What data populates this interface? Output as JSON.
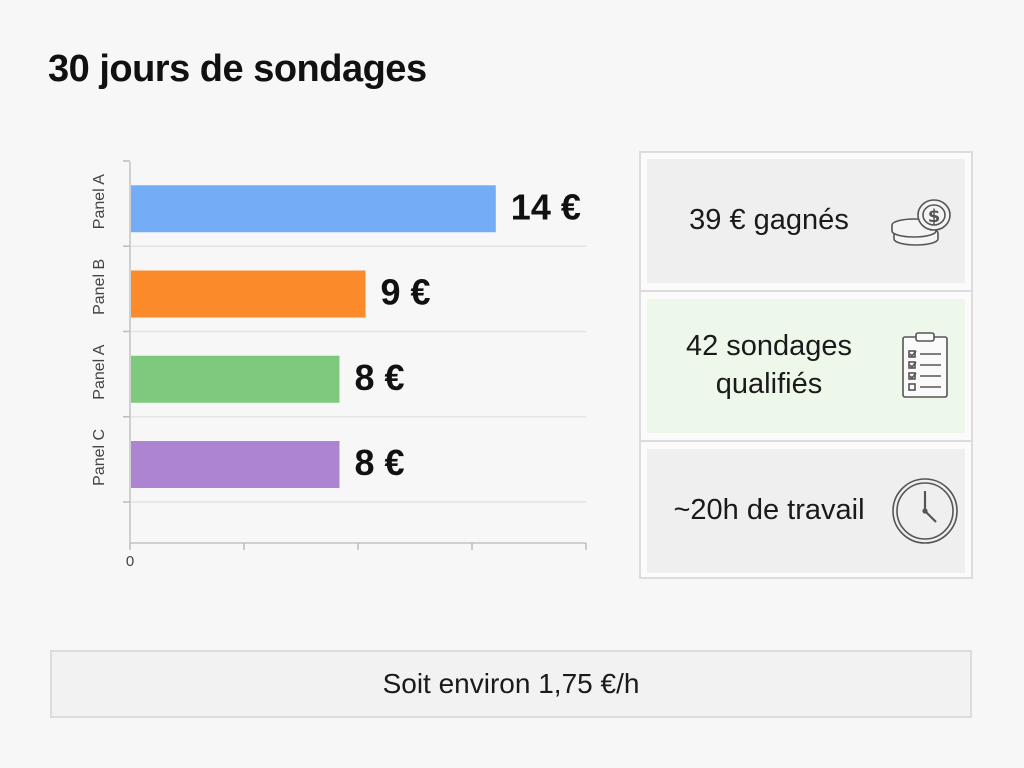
{
  "title": "30 jours de sondages",
  "chart_data": {
    "type": "bar",
    "orientation": "horizontal",
    "categories": [
      "Panel A",
      "Panel B",
      "Panel A",
      "Panel C"
    ],
    "values": [
      14,
      9,
      8,
      8
    ],
    "value_labels": [
      "14 €",
      "9 €",
      "8 €",
      "8 €"
    ],
    "colors": [
      "#74adf5",
      "#fb8a2b",
      "#7dca7e",
      "#ad84d2"
    ],
    "x_tick_labels": [
      "0"
    ],
    "xlim": [
      0,
      17.5
    ],
    "grid": true,
    "legend": "none"
  },
  "stats": {
    "earned": {
      "text": "39 € gagnés",
      "icon": "coins-icon"
    },
    "surveys": {
      "text": "42 sondages qualifiés",
      "icon": "checklist-icon"
    },
    "time": {
      "text": "~20h de travail",
      "icon": "clock-icon"
    }
  },
  "summary": "Soit environ 1,75 €/h"
}
